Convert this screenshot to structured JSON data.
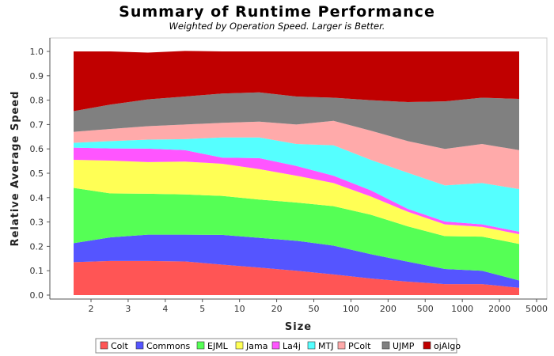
{
  "chart_data": {
    "type": "area",
    "stacked": true,
    "title": "Summary of Runtime Performance",
    "subtitle": "Weighted by Operation Speed. Larger is Better.",
    "xlabel": "Size",
    "ylabel": "Relative Average Speed",
    "ylim": [
      0,
      1
    ],
    "yticks": [
      "0.0",
      "0.1",
      "0.2",
      "0.3",
      "0.4",
      "0.5",
      "0.6",
      "0.7",
      "0.8",
      "0.9",
      "1.0"
    ],
    "categories": [
      "2",
      "3",
      "4",
      "5",
      "10",
      "20",
      "50",
      "100",
      "200",
      "500",
      "1000",
      "2000",
      "5000"
    ],
    "legend_position": "bottom",
    "grid": false,
    "series": [
      {
        "name": "Colt",
        "color": "#ff5555",
        "values": [
          0.135,
          0.14,
          0.14,
          0.138,
          0.125,
          0.113,
          0.1,
          0.085,
          0.068,
          0.055,
          0.045,
          0.045,
          0.03
        ]
      },
      {
        "name": "Commons",
        "color": "#5555ff",
        "values": [
          0.078,
          0.097,
          0.108,
          0.11,
          0.122,
          0.122,
          0.123,
          0.118,
          0.1,
          0.082,
          0.062,
          0.055,
          0.03
        ]
      },
      {
        "name": "EJML",
        "color": "#55ff55",
        "values": [
          0.227,
          0.18,
          0.168,
          0.165,
          0.16,
          0.157,
          0.157,
          0.162,
          0.162,
          0.145,
          0.135,
          0.14,
          0.15
        ]
      },
      {
        "name": "Jama",
        "color": "#ffff55",
        "values": [
          0.115,
          0.135,
          0.13,
          0.135,
          0.132,
          0.125,
          0.11,
          0.095,
          0.075,
          0.06,
          0.048,
          0.04,
          0.04
        ]
      },
      {
        "name": "La4j",
        "color": "#ff55ff",
        "values": [
          0.05,
          0.05,
          0.055,
          0.047,
          0.025,
          0.045,
          0.04,
          0.03,
          0.025,
          0.012,
          0.012,
          0.01,
          0.01
        ]
      },
      {
        "name": "MTJ",
        "color": "#55ffff",
        "values": [
          0.02,
          0.03,
          0.037,
          0.045,
          0.083,
          0.085,
          0.09,
          0.125,
          0.125,
          0.148,
          0.148,
          0.17,
          0.175
        ]
      },
      {
        "name": "PColt",
        "color": "#ffaaaa",
        "values": [
          0.045,
          0.05,
          0.055,
          0.06,
          0.06,
          0.065,
          0.08,
          0.1,
          0.12,
          0.13,
          0.15,
          0.16,
          0.16
        ]
      },
      {
        "name": "UJMP",
        "color": "#808080",
        "values": [
          0.085,
          0.1,
          0.11,
          0.115,
          0.12,
          0.12,
          0.115,
          0.095,
          0.125,
          0.16,
          0.195,
          0.19,
          0.21
        ]
      },
      {
        "name": "ojAlgo",
        "color": "#c00000",
        "values": [
          0.245,
          0.218,
          0.192,
          0.187,
          0.173,
          0.168,
          0.185,
          0.19,
          0.2,
          0.208,
          0.205,
          0.19,
          0.195
        ]
      }
    ]
  }
}
